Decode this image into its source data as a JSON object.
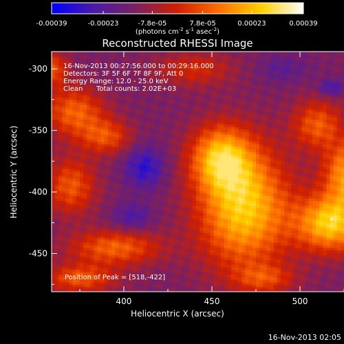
{
  "colorbar": {
    "tick_labels": [
      "-0.00039",
      "-0.00023",
      "-7.8e-05",
      "7.8e-05",
      "0.00023",
      "0.00039"
    ],
    "tick_values": [
      -0.00039,
      -0.00023,
      -7.8e-05,
      7.8e-05,
      0.00023,
      0.00039
    ],
    "range": [
      -0.00039,
      0.00039
    ],
    "units_prefix": "(photons cm",
    "units_exp1": "-2",
    "units_mid": " s",
    "units_exp2": "-1",
    "units_suffix": " asec",
    "units_exp3": "-2",
    "units_close": ")",
    "stops": [
      "#0000ff",
      "#4a1aa8",
      "#7a2060",
      "#d02000",
      "#ff7000",
      "#ffd000",
      "#ffffff"
    ]
  },
  "chart_data": {
    "type": "heatmap",
    "title": "Reconstructed RHESSI Image",
    "xlabel": "Heliocentric X (arcsec)",
    "ylabel": "Heliocentric Y (arcsec)",
    "xlim": [
      359,
      541
    ],
    "ylim": [
      -481,
      -286
    ],
    "xticks": [
      400,
      450,
      500
    ],
    "yticks": [
      -300,
      -350,
      -400,
      -450
    ],
    "annotations": [
      "16-Nov-2013 00:27:56.000 to 00:29:16.000",
      "Detectors: 3F 5F 6F 7F 8F 9F, Att 0",
      "Energy Range: 12.0 - 25.0 keV",
      "Clean",
      "Total counts: 2.02E+03",
      "Position of Peak = [518,-422]"
    ],
    "peak": {
      "x": 518,
      "y": -422
    },
    "blobs": [
      {
        "x": 468,
        "y": -412,
        "amp": 1.0,
        "sx": 18,
        "sy": 34
      },
      {
        "x": 455,
        "y": -372,
        "amp": 0.8,
        "sx": 12,
        "sy": 18
      },
      {
        "x": 518,
        "y": -425,
        "amp": 1.0,
        "sx": 14,
        "sy": 16
      },
      {
        "x": 528,
        "y": -385,
        "amp": 0.85,
        "sx": 10,
        "sy": 18
      },
      {
        "x": 510,
        "y": -345,
        "amp": 0.55,
        "sx": 10,
        "sy": 14
      },
      {
        "x": 372,
        "y": -335,
        "amp": 0.6,
        "sx": 12,
        "sy": 14
      },
      {
        "x": 390,
        "y": -355,
        "amp": 0.5,
        "sx": 10,
        "sy": 10
      },
      {
        "x": 370,
        "y": -395,
        "amp": 0.55,
        "sx": 10,
        "sy": 16
      },
      {
        "x": 395,
        "y": -445,
        "amp": 0.6,
        "sx": 18,
        "sy": 10
      },
      {
        "x": 375,
        "y": -470,
        "amp": 0.55,
        "sx": 14,
        "sy": 8
      },
      {
        "x": 440,
        "y": -300,
        "amp": 0.35,
        "sx": 16,
        "sy": 10
      },
      {
        "x": 540,
        "y": -310,
        "amp": 0.45,
        "sx": 6,
        "sy": 12
      },
      {
        "x": 480,
        "y": -470,
        "amp": 0.4,
        "sx": 12,
        "sy": 8
      },
      {
        "x": 360,
        "y": -300,
        "amp": 0.5,
        "sx": 6,
        "sy": 10
      }
    ],
    "dips": [
      {
        "x": 412,
        "y": -380,
        "amp": 0.45,
        "sx": 8,
        "sy": 12
      },
      {
        "x": 405,
        "y": -420,
        "amp": 0.3,
        "sx": 8,
        "sy": 8
      },
      {
        "x": 518,
        "y": -315,
        "amp": 0.35,
        "sx": 5,
        "sy": 5
      },
      {
        "x": 490,
        "y": -300,
        "amp": 0.2,
        "sx": 10,
        "sy": 8
      }
    ]
  },
  "footer_timestamp": "16-Nov-2013 02:05"
}
